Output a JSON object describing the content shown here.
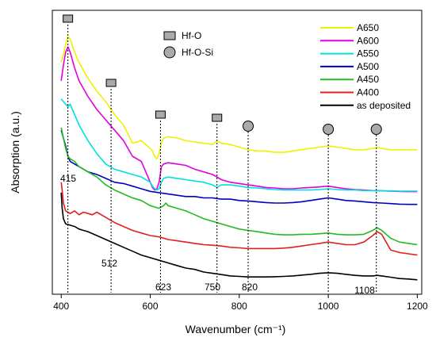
{
  "chart_data": {
    "type": "line",
    "title": "",
    "xlabel": "Wavenumber (cm⁻¹)",
    "ylabel": "Absorption (a.u.)",
    "xlim": [
      380,
      1210
    ],
    "ylim": [
      0,
      1
    ],
    "xticks": [
      400,
      600,
      800,
      1000,
      1200
    ],
    "yticks_shown": false,
    "grid": false,
    "legend_position": "top-right",
    "series": [
      {
        "name": "A650",
        "color": "#f0f000",
        "x": [
          400,
          405,
          410,
          415,
          420,
          430,
          440,
          460,
          480,
          500,
          520,
          540,
          560,
          580,
          600,
          605,
          610,
          615,
          620,
          625,
          630,
          640,
          660,
          680,
          700,
          720,
          740,
          750,
          760,
          780,
          800,
          820,
          840,
          860,
          880,
          900,
          920,
          940,
          960,
          980,
          1000,
          1020,
          1040,
          1060,
          1080,
          1100,
          1110,
          1120,
          1140,
          1160,
          1180,
          1200
        ],
        "y": [
          0.86,
          0.89,
          0.93,
          0.96,
          0.95,
          0.9,
          0.86,
          0.8,
          0.75,
          0.71,
          0.66,
          0.62,
          0.55,
          0.56,
          0.53,
          0.52,
          0.5,
          0.49,
          0.51,
          0.55,
          0.57,
          0.575,
          0.57,
          0.56,
          0.555,
          0.55,
          0.545,
          0.56,
          0.55,
          0.545,
          0.535,
          0.525,
          0.52,
          0.52,
          0.515,
          0.515,
          0.52,
          0.525,
          0.53,
          0.535,
          0.54,
          0.535,
          0.53,
          0.525,
          0.525,
          0.53,
          0.535,
          0.53,
          0.525,
          0.525,
          0.525,
          0.525
        ]
      },
      {
        "name": "A600",
        "color": "#e000e0",
        "x": [
          400,
          405,
          410,
          415,
          420,
          430,
          440,
          460,
          480,
          500,
          520,
          540,
          560,
          580,
          590,
          600,
          605,
          610,
          615,
          620,
          625,
          630,
          640,
          660,
          680,
          700,
          720,
          740,
          750,
          760,
          780,
          800,
          820,
          840,
          860,
          880,
          900,
          920,
          940,
          960,
          980,
          1000,
          1020,
          1040,
          1060,
          1080,
          1100,
          1120,
          1140,
          1160,
          1180,
          1200
        ],
        "y": [
          0.79,
          0.85,
          0.9,
          0.92,
          0.9,
          0.84,
          0.79,
          0.73,
          0.68,
          0.64,
          0.6,
          0.56,
          0.5,
          0.48,
          0.44,
          0.4,
          0.38,
          0.37,
          0.375,
          0.4,
          0.46,
          0.47,
          0.475,
          0.47,
          0.465,
          0.45,
          0.44,
          0.43,
          0.42,
          0.41,
          0.4,
          0.395,
          0.39,
          0.385,
          0.38,
          0.378,
          0.375,
          0.375,
          0.378,
          0.38,
          0.382,
          0.385,
          0.38,
          0.375,
          0.372,
          0.37,
          0.368,
          0.367,
          0.366,
          0.365,
          0.364,
          0.364
        ]
      },
      {
        "name": "A550",
        "color": "#00e0e0",
        "x": [
          400,
          410,
          415,
          420,
          430,
          440,
          460,
          480,
          500,
          520,
          540,
          560,
          580,
          600,
          605,
          610,
          615,
          620,
          625,
          630,
          640,
          660,
          680,
          700,
          720,
          740,
          750,
          760,
          780,
          800,
          820,
          840,
          860,
          880,
          900,
          920,
          940,
          960,
          980,
          1000,
          1020,
          1040,
          1060,
          1080,
          1100,
          1120,
          1140,
          1160,
          1180,
          1200
        ],
        "y": [
          0.72,
          0.7,
          0.69,
          0.7,
          0.66,
          0.62,
          0.56,
          0.51,
          0.47,
          0.45,
          0.44,
          0.43,
          0.42,
          0.4,
          0.385,
          0.375,
          0.37,
          0.375,
          0.4,
          0.415,
          0.42,
          0.415,
          0.41,
          0.405,
          0.4,
          0.39,
          0.38,
          0.39,
          0.39,
          0.385,
          0.38,
          0.378,
          0.375,
          0.372,
          0.37,
          0.37,
          0.37,
          0.37,
          0.372,
          0.375,
          0.372,
          0.37,
          0.37,
          0.368,
          0.368,
          0.367,
          0.367,
          0.366,
          0.366,
          0.366
        ]
      },
      {
        "name": "A500",
        "color": "#0000c0",
        "x": [
          400,
          410,
          415,
          420,
          430,
          440,
          460,
          480,
          500,
          520,
          540,
          560,
          580,
          600,
          620,
          640,
          660,
          680,
          700,
          720,
          740,
          760,
          780,
          800,
          820,
          840,
          860,
          880,
          900,
          920,
          940,
          960,
          980,
          1000,
          1020,
          1040,
          1060,
          1080,
          1100,
          1120,
          1140,
          1160,
          1180,
          1200
        ],
        "y": [
          0.6,
          0.54,
          0.5,
          0.48,
          0.47,
          0.46,
          0.44,
          0.43,
          0.415,
          0.4,
          0.395,
          0.385,
          0.375,
          0.365,
          0.36,
          0.355,
          0.35,
          0.345,
          0.345,
          0.34,
          0.34,
          0.335,
          0.335,
          0.33,
          0.328,
          0.325,
          0.322,
          0.32,
          0.32,
          0.322,
          0.325,
          0.33,
          0.335,
          0.34,
          0.335,
          0.33,
          0.328,
          0.325,
          0.322,
          0.32,
          0.318,
          0.316,
          0.315,
          0.315
        ]
      },
      {
        "name": "A450",
        "color": "#22bb22",
        "x": [
          400,
          410,
          415,
          420,
          430,
          440,
          460,
          480,
          500,
          520,
          540,
          560,
          580,
          600,
          610,
          620,
          630,
          635,
          640,
          660,
          680,
          700,
          720,
          740,
          760,
          780,
          800,
          820,
          840,
          860,
          880,
          900,
          920,
          940,
          960,
          980,
          1000,
          1020,
          1040,
          1060,
          1080,
          1100,
          1110,
          1120,
          1140,
          1160,
          1180,
          1200
        ],
        "y": [
          0.61,
          0.53,
          0.5,
          0.49,
          0.48,
          0.46,
          0.44,
          0.42,
          0.39,
          0.37,
          0.355,
          0.34,
          0.33,
          0.31,
          0.305,
          0.3,
          0.31,
          0.32,
          0.31,
          0.3,
          0.29,
          0.275,
          0.26,
          0.25,
          0.24,
          0.23,
          0.22,
          0.215,
          0.21,
          0.205,
          0.2,
          0.198,
          0.198,
          0.2,
          0.2,
          0.202,
          0.205,
          0.2,
          0.198,
          0.198,
          0.2,
          0.215,
          0.225,
          0.215,
          0.185,
          0.17,
          0.165,
          0.16
        ]
      },
      {
        "name": "A400",
        "color": "#e02020",
        "x": [
          400,
          402,
          405,
          410,
          420,
          430,
          440,
          450,
          460,
          470,
          480,
          490,
          500,
          510,
          520,
          540,
          560,
          580,
          600,
          620,
          630,
          640,
          660,
          680,
          700,
          720,
          740,
          760,
          780,
          800,
          820,
          840,
          860,
          880,
          900,
          920,
          940,
          960,
          980,
          1000,
          1020,
          1040,
          1060,
          1080,
          1100,
          1110,
          1120,
          1130,
          1140,
          1160,
          1180,
          1200
        ],
        "y": [
          0.4,
          0.37,
          0.32,
          0.29,
          0.28,
          0.29,
          0.275,
          0.285,
          0.28,
          0.275,
          0.285,
          0.275,
          0.265,
          0.255,
          0.245,
          0.23,
          0.215,
          0.205,
          0.195,
          0.19,
          0.185,
          0.18,
          0.175,
          0.17,
          0.165,
          0.16,
          0.158,
          0.155,
          0.15,
          0.148,
          0.145,
          0.145,
          0.145,
          0.145,
          0.147,
          0.15,
          0.155,
          0.16,
          0.165,
          0.17,
          0.165,
          0.16,
          0.16,
          0.17,
          0.195,
          0.21,
          0.2,
          0.17,
          0.14,
          0.13,
          0.125,
          0.12
        ]
      },
      {
        "name": "as deposited",
        "color": "#000000",
        "x": [
          400,
          402,
          405,
          410,
          420,
          430,
          440,
          450,
          460,
          480,
          500,
          520,
          540,
          560,
          580,
          600,
          620,
          640,
          660,
          680,
          700,
          720,
          740,
          760,
          780,
          800,
          820,
          840,
          860,
          880,
          900,
          920,
          940,
          960,
          980,
          1000,
          1020,
          1040,
          1060,
          1080,
          1100,
          1110,
          1120,
          1140,
          1160,
          1180,
          1200
        ],
        "y": [
          0.36,
          0.3,
          0.26,
          0.24,
          0.235,
          0.23,
          0.22,
          0.215,
          0.21,
          0.195,
          0.18,
          0.165,
          0.15,
          0.135,
          0.12,
          0.11,
          0.1,
          0.09,
          0.08,
          0.07,
          0.065,
          0.055,
          0.05,
          0.045,
          0.04,
          0.038,
          0.036,
          0.036,
          0.036,
          0.037,
          0.038,
          0.04,
          0.043,
          0.046,
          0.05,
          0.052,
          0.05,
          0.046,
          0.042,
          0.04,
          0.04,
          0.042,
          0.04,
          0.035,
          0.03,
          0.028,
          0.025
        ]
      }
    ],
    "annotations": {
      "lines": [
        {
          "x": 415,
          "marker": "square",
          "label": "415"
        },
        {
          "x": 512,
          "marker": "square",
          "label": "512"
        },
        {
          "x": 623,
          "marker": "square",
          "label": "623"
        },
        {
          "x": 750,
          "marker": "square",
          "label": "750"
        },
        {
          "x": 820,
          "marker": "circle",
          "label": "820"
        },
        {
          "x": 1000,
          "marker": "circle",
          "label": ""
        },
        {
          "x": 1108,
          "marker": "circle",
          "label": "1108"
        }
      ],
      "marker_legend": [
        {
          "marker": "square",
          "label": "Hf-O"
        },
        {
          "marker": "circle",
          "label": "Hf-O-Si"
        }
      ]
    }
  }
}
